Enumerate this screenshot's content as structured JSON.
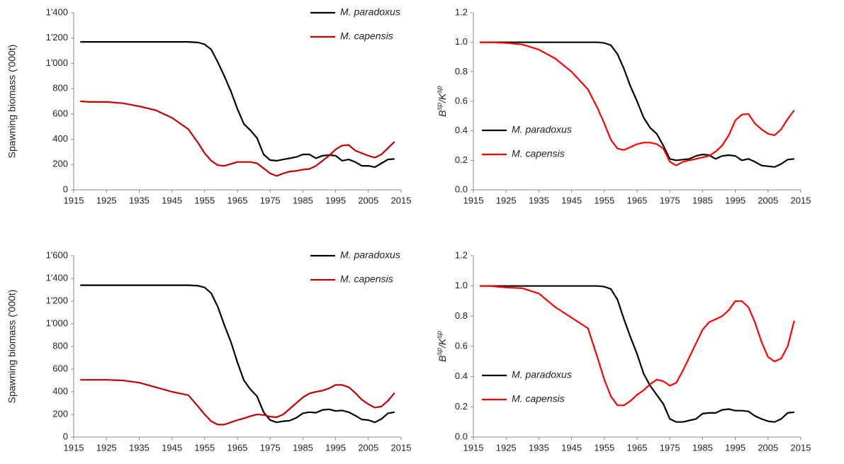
{
  "chart_data": [
    {
      "type": "line",
      "ylabel": "Spawning biomass ('000t)",
      "legend": "upper right",
      "x": [
        1917,
        1920,
        1925,
        1930,
        1935,
        1940,
        1945,
        1950,
        1953,
        1955,
        1957,
        1959,
        1961,
        1963,
        1965,
        1967,
        1969,
        1971,
        1973,
        1975,
        1977,
        1979,
        1981,
        1983,
        1985,
        1987,
        1989,
        1991,
        1993,
        1995,
        1997,
        1999,
        2001,
        2003,
        2005,
        2007,
        2009,
        2011,
        2013
      ],
      "xlim": [
        1915,
        2015
      ],
      "xticks": [
        1915,
        1925,
        1935,
        1945,
        1955,
        1965,
        1975,
        1985,
        1995,
        2005,
        2015
      ],
      "ylim": [
        0,
        1400
      ],
      "yticks": [
        0,
        200,
        400,
        600,
        800,
        {
          "value": 1000,
          "label": "1'000"
        },
        {
          "value": 1200,
          "label": "1'200"
        },
        {
          "value": 1400,
          "label": "1'400"
        }
      ],
      "series": [
        {
          "name": "M. paradoxus",
          "color": "#000000",
          "values": [
            1170,
            1170,
            1170,
            1170,
            1170,
            1170,
            1170,
            1170,
            1165,
            1150,
            1110,
            1010,
            900,
            780,
            640,
            520,
            470,
            410,
            280,
            235,
            230,
            240,
            250,
            260,
            280,
            280,
            250,
            270,
            275,
            270,
            230,
            240,
            220,
            190,
            190,
            180,
            210,
            240,
            245
          ]
        },
        {
          "name": "M. capensis",
          "color": "#c00000",
          "values": [
            700,
            695,
            695,
            685,
            660,
            630,
            570,
            480,
            370,
            290,
            230,
            195,
            190,
            205,
            220,
            220,
            220,
            210,
            170,
            130,
            110,
            130,
            145,
            150,
            160,
            165,
            190,
            230,
            270,
            320,
            350,
            355,
            310,
            290,
            270,
            255,
            280,
            330,
            380
          ]
        }
      ]
    },
    {
      "type": "line",
      "ylabel": [
        {
          "text": "B"
        },
        {
          "text": "sp",
          "sup": true
        },
        {
          "text": "/K"
        },
        {
          "text": "sp",
          "sup": true
        }
      ],
      "legend": "center left",
      "x": [
        1917,
        1920,
        1925,
        1930,
        1935,
        1940,
        1945,
        1950,
        1953,
        1955,
        1957,
        1959,
        1961,
        1963,
        1965,
        1967,
        1969,
        1971,
        1973,
        1975,
        1977,
        1979,
        1981,
        1983,
        1985,
        1987,
        1989,
        1991,
        1993,
        1995,
        1997,
        1999,
        2001,
        2003,
        2005,
        2007,
        2009,
        2011,
        2013
      ],
      "xlim": [
        1915,
        2015
      ],
      "xticks": [
        1915,
        1925,
        1935,
        1945,
        1955,
        1965,
        1975,
        1985,
        1995,
        2005,
        2015
      ],
      "ylim": [
        0,
        1.2
      ],
      "yticks": [
        {
          "value": 0,
          "label": "0.0"
        },
        0.2,
        0.4,
        0.6,
        0.8,
        {
          "value": 1,
          "label": "1.0"
        },
        1.2
      ],
      "series": [
        {
          "name": "M. paradoxus",
          "color": "#000000",
          "values": [
            1,
            1,
            1,
            1,
            1,
            1,
            1,
            1,
            1,
            0.995,
            0.98,
            0.92,
            0.82,
            0.7,
            0.6,
            0.49,
            0.42,
            0.38,
            0.3,
            0.21,
            0.2,
            0.205,
            0.21,
            0.23,
            0.24,
            0.235,
            0.21,
            0.23,
            0.235,
            0.23,
            0.2,
            0.21,
            0.19,
            0.165,
            0.16,
            0.155,
            0.175,
            0.205,
            0.21
          ]
        },
        {
          "name": "M. capensis",
          "color": "#ff0000",
          "values": [
            1,
            1,
            0.995,
            0.985,
            0.95,
            0.89,
            0.8,
            0.68,
            0.55,
            0.45,
            0.34,
            0.28,
            0.27,
            0.29,
            0.31,
            0.32,
            0.32,
            0.31,
            0.28,
            0.19,
            0.165,
            0.19,
            0.2,
            0.21,
            0.22,
            0.23,
            0.26,
            0.3,
            0.37,
            0.47,
            0.51,
            0.515,
            0.45,
            0.41,
            0.38,
            0.37,
            0.41,
            0.48,
            0.54
          ]
        }
      ]
    },
    {
      "type": "line",
      "ylabel": "Spawning biomass ('000t)",
      "legend": "upper right",
      "x": [
        1917,
        1920,
        1925,
        1930,
        1935,
        1940,
        1945,
        1950,
        1953,
        1955,
        1957,
        1959,
        1961,
        1963,
        1965,
        1967,
        1969,
        1971,
        1973,
        1975,
        1977,
        1979,
        1981,
        1983,
        1985,
        1987,
        1989,
        1991,
        1993,
        1995,
        1997,
        1999,
        2001,
        2003,
        2005,
        2007,
        2009,
        2011,
        2013
      ],
      "xlim": [
        1915,
        2015
      ],
      "xticks": [
        1915,
        1925,
        1935,
        1945,
        1955,
        1965,
        1975,
        1985,
        1995,
        2005,
        2015
      ],
      "ylim": [
        0,
        1600
      ],
      "yticks": [
        0,
        200,
        400,
        600,
        800,
        {
          "value": 1000,
          "label": "1'000"
        },
        {
          "value": 1200,
          "label": "1'200"
        },
        {
          "value": 1400,
          "label": "1'400"
        },
        {
          "value": 1600,
          "label": "1'600"
        }
      ],
      "series": [
        {
          "name": "M. paradoxus",
          "color": "#000000",
          "values": [
            1340,
            1340,
            1340,
            1340,
            1340,
            1340,
            1340,
            1340,
            1335,
            1320,
            1270,
            1150,
            990,
            840,
            660,
            500,
            420,
            360,
            220,
            150,
            130,
            140,
            145,
            170,
            210,
            220,
            215,
            240,
            245,
            230,
            235,
            220,
            190,
            155,
            150,
            130,
            160,
            210,
            220
          ]
        },
        {
          "name": "M. capensis",
          "color": "#c00000",
          "values": [
            505,
            505,
            505,
            500,
            480,
            440,
            400,
            370,
            270,
            200,
            140,
            110,
            110,
            130,
            150,
            165,
            185,
            200,
            195,
            180,
            175,
            200,
            250,
            300,
            350,
            385,
            400,
            410,
            430,
            460,
            460,
            440,
            390,
            330,
            290,
            260,
            270,
            320,
            390
          ]
        }
      ]
    },
    {
      "type": "line",
      "ylabel": [
        {
          "text": "B"
        },
        {
          "text": "sp",
          "sup": true
        },
        {
          "text": "/K"
        },
        {
          "text": "sp",
          "sup": true
        }
      ],
      "legend": "center left",
      "x": [
        1917,
        1920,
        1925,
        1930,
        1935,
        1940,
        1945,
        1950,
        1953,
        1955,
        1957,
        1959,
        1961,
        1963,
        1965,
        1967,
        1969,
        1971,
        1973,
        1975,
        1977,
        1979,
        1981,
        1983,
        1985,
        1987,
        1989,
        1991,
        1993,
        1995,
        1997,
        1999,
        2001,
        2003,
        2005,
        2007,
        2009,
        2011,
        2013
      ],
      "xlim": [
        1915,
        2015
      ],
      "xticks": [
        1915,
        1925,
        1935,
        1945,
        1955,
        1965,
        1975,
        1985,
        1995,
        2005,
        2015
      ],
      "ylim": [
        0,
        1.2
      ],
      "yticks": [
        {
          "value": 0,
          "label": "0.0"
        },
        0.2,
        0.4,
        0.6,
        0.8,
        {
          "value": 1,
          "label": "1.0"
        },
        1.2
      ],
      "series": [
        {
          "name": "M. paradoxus",
          "color": "#000000",
          "values": [
            1,
            1,
            1,
            1,
            1,
            1,
            1,
            1,
            1,
            0.995,
            0.98,
            0.91,
            0.78,
            0.66,
            0.55,
            0.42,
            0.34,
            0.28,
            0.22,
            0.12,
            0.1,
            0.1,
            0.11,
            0.12,
            0.155,
            0.16,
            0.16,
            0.18,
            0.185,
            0.175,
            0.175,
            0.17,
            0.14,
            0.12,
            0.105,
            0.1,
            0.12,
            0.16,
            0.165
          ]
        },
        {
          "name": "M. capensis",
          "color": "#ff0000",
          "values": [
            1,
            1,
            0.99,
            0.985,
            0.95,
            0.86,
            0.79,
            0.72,
            0.52,
            0.38,
            0.27,
            0.21,
            0.21,
            0.24,
            0.28,
            0.31,
            0.35,
            0.38,
            0.37,
            0.34,
            0.36,
            0.44,
            0.53,
            0.62,
            0.71,
            0.76,
            0.78,
            0.8,
            0.84,
            0.9,
            0.9,
            0.86,
            0.76,
            0.63,
            0.53,
            0.5,
            0.52,
            0.6,
            0.77
          ]
        }
      ]
    }
  ]
}
